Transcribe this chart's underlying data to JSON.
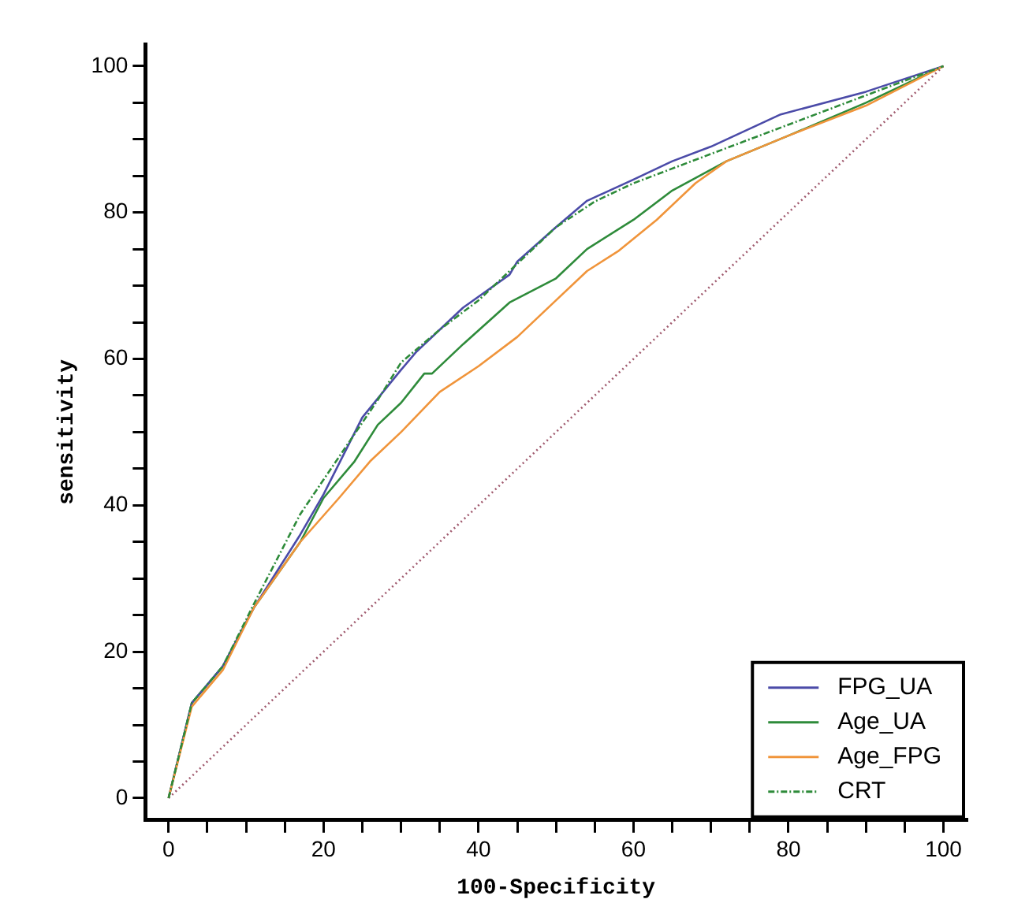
{
  "chart_data": {
    "type": "line",
    "xlabel": "100-Specificity",
    "ylabel": "sensitivity",
    "xlim": [
      -3,
      103
    ],
    "ylim": [
      -3,
      103
    ],
    "xticks": [
      0,
      {
        "value": 5,
        "label": null
      },
      {
        "value": 10,
        "label": null
      },
      {
        "value": 15,
        "label": null
      },
      20,
      {
        "value": 25,
        "label": null
      },
      {
        "value": 30,
        "label": null
      },
      {
        "value": 35,
        "label": null
      },
      40,
      {
        "value": 45,
        "label": null
      },
      {
        "value": 50,
        "label": null
      },
      {
        "value": 55,
        "label": null
      },
      60,
      {
        "value": 65,
        "label": null
      },
      {
        "value": 70,
        "label": null
      },
      {
        "value": 75,
        "label": null
      },
      80,
      {
        "value": 85,
        "label": null
      },
      {
        "value": 90,
        "label": null
      },
      {
        "value": 95,
        "label": null
      },
      100
    ],
    "yticks": [
      0,
      {
        "value": 5,
        "label": null
      },
      {
        "value": 10,
        "label": null
      },
      {
        "value": 15,
        "label": null
      },
      20,
      {
        "value": 25,
        "label": null
      },
      {
        "value": 30,
        "label": null
      },
      {
        "value": 35,
        "label": null
      },
      40,
      {
        "value": 45,
        "label": null
      },
      {
        "value": 50,
        "label": null
      },
      {
        "value": 55,
        "label": null
      },
      60,
      {
        "value": 65,
        "label": null
      },
      {
        "value": 70,
        "label": null
      },
      {
        "value": 75,
        "label": null
      },
      80,
      {
        "value": 85,
        "label": null
      },
      {
        "value": 90,
        "label": null
      },
      {
        "value": 95,
        "label": null
      },
      100
    ],
    "grid": false,
    "legend": "bottom right",
    "marker": "none",
    "series": [
      {
        "name": "FPG_UA",
        "color": "#4b4ba8",
        "line_style": "solid",
        "x": [
          0,
          3,
          7,
          11,
          17,
          20,
          25,
          30,
          32,
          38,
          44,
          45,
          50,
          54,
          60,
          65,
          70,
          79,
          90,
          100
        ],
        "values": [
          0,
          13,
          18,
          26,
          36,
          41.5,
          52,
          58.5,
          61,
          67,
          71.5,
          73.3,
          78,
          81.6,
          84.5,
          87,
          89,
          93.4,
          96.5,
          100
        ]
      },
      {
        "name": "Age_UA",
        "color": "#2e8b3a",
        "line_style": "solid",
        "x": [
          0,
          3,
          7,
          11,
          17,
          20,
          24,
          27,
          30,
          33,
          34,
          38,
          44,
          50,
          54,
          60,
          65,
          72,
          80,
          90,
          100
        ],
        "values": [
          0,
          13,
          18,
          26,
          35,
          41,
          46,
          51,
          54,
          58,
          58,
          62,
          67.7,
          71,
          75,
          79,
          83,
          87,
          90.5,
          95,
          100
        ]
      },
      {
        "name": "Age_FPG",
        "color": "#f0943a",
        "line_style": "solid",
        "x": [
          0,
          3,
          7,
          11,
          17,
          22,
          26,
          30,
          35,
          40,
          45,
          50,
          54,
          58,
          63,
          68,
          72,
          80,
          90,
          100
        ],
        "values": [
          0,
          12.5,
          17.5,
          26,
          35,
          41,
          46,
          50,
          55.5,
          59,
          63,
          68,
          72,
          74.7,
          79,
          84,
          87,
          90.5,
          94.6,
          100
        ]
      },
      {
        "name": "CRT",
        "color": "#2e8b3a",
        "line_style": "dashed",
        "x": [
          0,
          3,
          7,
          11,
          17,
          20,
          27,
          30,
          35,
          40,
          45,
          50,
          55,
          60,
          70,
          80,
          90,
          100
        ],
        "values": [
          0,
          13,
          18,
          26.5,
          38.8,
          43.5,
          54.4,
          59.5,
          64,
          68,
          73,
          78,
          81.5,
          84,
          88,
          92,
          96,
          100
        ]
      },
      {
        "color": "#a05a6e",
        "line_style": "dotted",
        "x": [
          0,
          100
        ],
        "values": [
          0,
          100
        ]
      }
    ]
  }
}
